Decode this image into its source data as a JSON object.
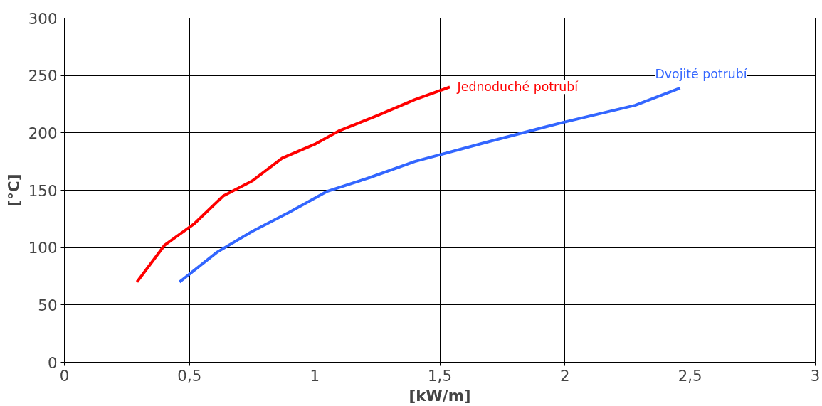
{
  "chart_data": {
    "type": "line",
    "xlabel": "[kW/m]",
    "ylabel": "[°C]",
    "xlim": [
      0,
      3
    ],
    "ylim": [
      0,
      300
    ],
    "xticks": [
      0,
      {
        "value": 0.5,
        "label": "0,5"
      },
      1,
      {
        "value": 1.5,
        "label": "1,5"
      },
      2,
      {
        "value": 2.5,
        "label": "2,5"
      },
      3
    ],
    "yticks": [
      0,
      50,
      100,
      150,
      200,
      250,
      300
    ],
    "grid": true,
    "line_style": "solid",
    "marker": "none",
    "series": [
      {
        "name": "Jednoduché potrubí",
        "color": "#ff0000",
        "x": [
          0.29,
          0.4,
          0.52,
          0.635,
          0.75,
          0.87,
          1.0,
          1.1,
          1.25,
          1.4,
          1.54
        ],
        "values": [
          70,
          102,
          121,
          145,
          158,
          178,
          190,
          202,
          215,
          229,
          240
        ]
      },
      {
        "name": "Dvojité potrubí",
        "color": "#3366ff",
        "x": [
          0.46,
          0.61,
          0.75,
          0.9,
          1.05,
          1.22,
          1.4,
          1.69,
          1.99,
          2.28,
          2.46
        ],
        "values": [
          70,
          96,
          114,
          131,
          149,
          161,
          175,
          192,
          209,
          224,
          239
        ]
      }
    ]
  }
}
